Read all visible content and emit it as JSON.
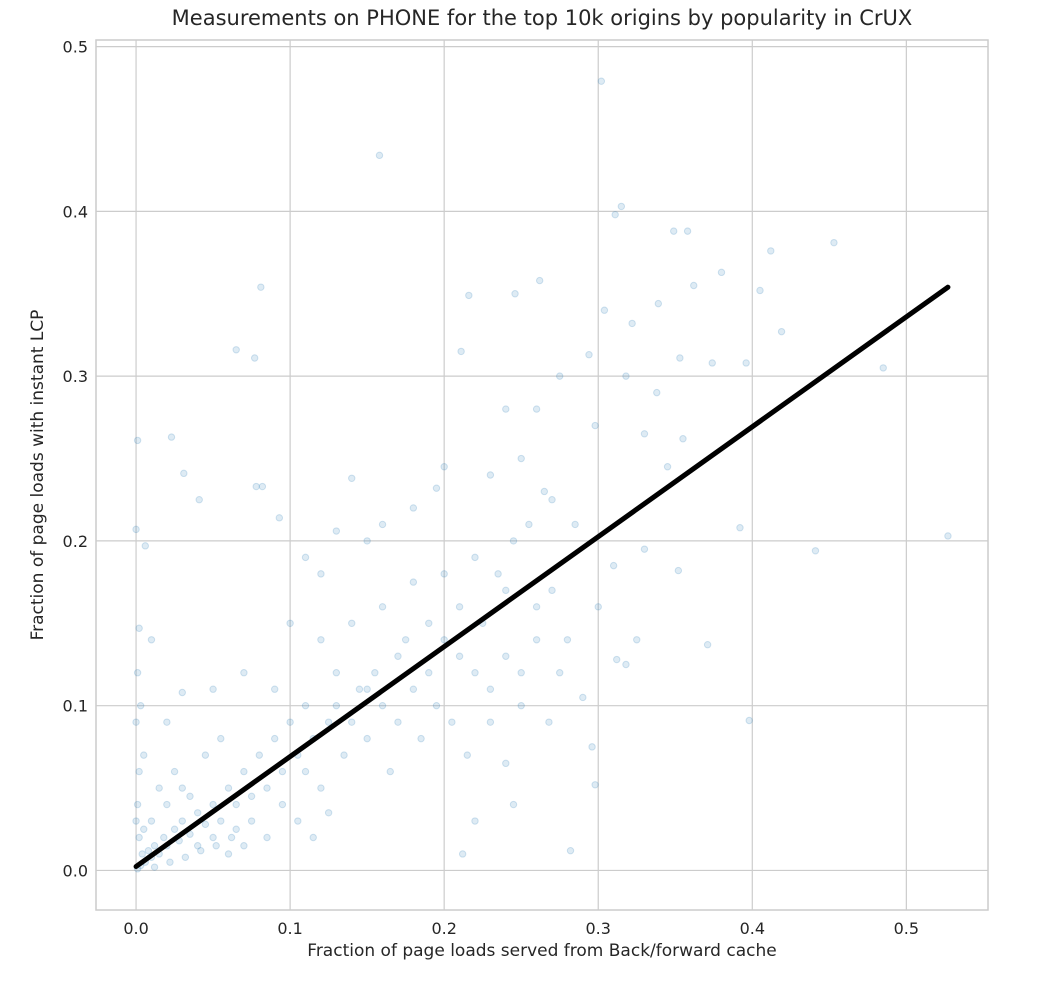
{
  "chart_data": {
    "type": "scatter",
    "title": "Measurements on PHONE for the top 10k origins by popularity in CrUX",
    "xlabel": "Fraction of page loads served from Back/forward cache",
    "ylabel": "Fraction of page loads with instant LCP",
    "xlim": [
      -0.026,
      0.553
    ],
    "ylim": [
      -0.024,
      0.504
    ],
    "xticks": [
      "0.0",
      "0.1",
      "0.2",
      "0.3",
      "0.4",
      "0.5"
    ],
    "yticks": [
      "0.0",
      "0.1",
      "0.2",
      "0.3",
      "0.4",
      "0.5"
    ],
    "grid": true,
    "point_color": "#1f77b4",
    "point_alpha": 0.15,
    "line_color": "#000000",
    "trend_line": [
      [
        0.0,
        0.0024
      ],
      [
        0.527,
        0.354
      ]
    ],
    "points": [
      [
        0.302,
        0.479
      ],
      [
        0.158,
        0.434
      ],
      [
        0.315,
        0.403
      ],
      [
        0.311,
        0.398
      ],
      [
        0.453,
        0.381
      ],
      [
        0.412,
        0.376
      ],
      [
        0.349,
        0.388
      ],
      [
        0.358,
        0.388
      ],
      [
        0.527,
        0.203
      ],
      [
        0.441,
        0.194
      ],
      [
        0.398,
        0.091
      ],
      [
        0.485,
        0.305
      ],
      [
        0.081,
        0.354
      ],
      [
        0.262,
        0.358
      ],
      [
        0.065,
        0.316
      ],
      [
        0.077,
        0.311
      ],
      [
        0.001,
        0.261
      ],
      [
        0.023,
        0.263
      ],
      [
        0.031,
        0.241
      ],
      [
        0.041,
        0.225
      ],
      [
        0.078,
        0.233
      ],
      [
        0.082,
        0.233
      ],
      [
        0.093,
        0.214
      ],
      [
        0.0,
        0.207
      ],
      [
        0.006,
        0.197
      ],
      [
        0.211,
        0.315
      ],
      [
        0.216,
        0.349
      ],
      [
        0.246,
        0.35
      ],
      [
        0.405,
        0.352
      ],
      [
        0.419,
        0.327
      ],
      [
        0.371,
        0.137
      ],
      [
        0.392,
        0.208
      ],
      [
        0.296,
        0.075
      ],
      [
        0.298,
        0.052
      ],
      [
        0.282,
        0.012
      ],
      [
        0.38,
        0.363
      ],
      [
        0.362,
        0.355
      ],
      [
        0.339,
        0.344
      ],
      [
        0.304,
        0.34
      ],
      [
        0.322,
        0.332
      ],
      [
        0.294,
        0.313
      ],
      [
        0.374,
        0.308
      ],
      [
        0.353,
        0.311
      ],
      [
        0.396,
        0.308
      ],
      [
        0.338,
        0.29
      ],
      [
        0.318,
        0.3
      ],
      [
        0.298,
        0.27
      ],
      [
        0.26,
        0.28
      ],
      [
        0.24,
        0.28
      ],
      [
        0.275,
        0.3
      ],
      [
        0.33,
        0.265
      ],
      [
        0.355,
        0.262
      ],
      [
        0.345,
        0.245
      ],
      [
        0.25,
        0.25
      ],
      [
        0.23,
        0.24
      ],
      [
        0.2,
        0.245
      ],
      [
        0.195,
        0.232
      ],
      [
        0.27,
        0.225
      ],
      [
        0.285,
        0.21
      ],
      [
        0.31,
        0.185
      ],
      [
        0.33,
        0.195
      ],
      [
        0.352,
        0.182
      ],
      [
        0.3,
        0.16
      ],
      [
        0.325,
        0.14
      ],
      [
        0.312,
        0.128
      ],
      [
        0.318,
        0.125
      ],
      [
        0.29,
        0.105
      ],
      [
        0.268,
        0.09
      ],
      [
        0.24,
        0.065
      ],
      [
        0.245,
        0.04
      ],
      [
        0.22,
        0.03
      ],
      [
        0.212,
        0.01
      ],
      [
        0.18,
        0.22
      ],
      [
        0.16,
        0.21
      ],
      [
        0.15,
        0.2
      ],
      [
        0.14,
        0.238
      ],
      [
        0.13,
        0.206
      ],
      [
        0.12,
        0.18
      ],
      [
        0.11,
        0.19
      ],
      [
        0.1,
        0.15
      ],
      [
        0.12,
        0.14
      ],
      [
        0.14,
        0.15
      ],
      [
        0.16,
        0.16
      ],
      [
        0.18,
        0.175
      ],
      [
        0.2,
        0.18
      ],
      [
        0.22,
        0.19
      ],
      [
        0.24,
        0.17
      ],
      [
        0.26,
        0.16
      ],
      [
        0.28,
        0.14
      ],
      [
        0.25,
        0.12
      ],
      [
        0.23,
        0.11
      ],
      [
        0.21,
        0.13
      ],
      [
        0.19,
        0.12
      ],
      [
        0.17,
        0.13
      ],
      [
        0.15,
        0.11
      ],
      [
        0.13,
        0.12
      ],
      [
        0.11,
        0.1
      ],
      [
        0.09,
        0.11
      ],
      [
        0.07,
        0.12
      ],
      [
        0.05,
        0.11
      ],
      [
        0.03,
        0.108
      ],
      [
        0.02,
        0.09
      ],
      [
        0.01,
        0.14
      ],
      [
        0.002,
        0.147
      ],
      [
        0.001,
        0.12
      ],
      [
        0.003,
        0.1
      ],
      [
        0.0,
        0.09
      ],
      [
        0.005,
        0.07
      ],
      [
        0.002,
        0.06
      ],
      [
        0.001,
        0.04
      ],
      [
        0.0,
        0.03
      ],
      [
        0.002,
        0.02
      ],
      [
        0.004,
        0.01
      ],
      [
        0.006,
        0.005
      ],
      [
        0.008,
        0.012
      ],
      [
        0.01,
        0.008
      ],
      [
        0.012,
        0.015
      ],
      [
        0.015,
        0.01
      ],
      [
        0.018,
        0.02
      ],
      [
        0.02,
        0.015
      ],
      [
        0.025,
        0.025
      ],
      [
        0.028,
        0.018
      ],
      [
        0.03,
        0.03
      ],
      [
        0.035,
        0.022
      ],
      [
        0.04,
        0.035
      ],
      [
        0.045,
        0.028
      ],
      [
        0.05,
        0.04
      ],
      [
        0.055,
        0.03
      ],
      [
        0.06,
        0.05
      ],
      [
        0.065,
        0.04
      ],
      [
        0.07,
        0.06
      ],
      [
        0.075,
        0.045
      ],
      [
        0.08,
        0.07
      ],
      [
        0.085,
        0.05
      ],
      [
        0.09,
        0.08
      ],
      [
        0.095,
        0.06
      ],
      [
        0.1,
        0.09
      ],
      [
        0.105,
        0.07
      ],
      [
        0.11,
        0.06
      ],
      [
        0.115,
        0.08
      ],
      [
        0.12,
        0.05
      ],
      [
        0.125,
        0.09
      ],
      [
        0.13,
        0.1
      ],
      [
        0.135,
        0.07
      ],
      [
        0.14,
        0.09
      ],
      [
        0.145,
        0.11
      ],
      [
        0.15,
        0.08
      ],
      [
        0.155,
        0.12
      ],
      [
        0.16,
        0.1
      ],
      [
        0.165,
        0.06
      ],
      [
        0.17,
        0.09
      ],
      [
        0.175,
        0.14
      ],
      [
        0.18,
        0.11
      ],
      [
        0.185,
        0.08
      ],
      [
        0.19,
        0.15
      ],
      [
        0.195,
        0.1
      ],
      [
        0.2,
        0.14
      ],
      [
        0.205,
        0.09
      ],
      [
        0.21,
        0.16
      ],
      [
        0.215,
        0.07
      ],
      [
        0.22,
        0.12
      ],
      [
        0.225,
        0.15
      ],
      [
        0.23,
        0.09
      ],
      [
        0.235,
        0.18
      ],
      [
        0.24,
        0.13
      ],
      [
        0.245,
        0.2
      ],
      [
        0.25,
        0.1
      ],
      [
        0.255,
        0.21
      ],
      [
        0.26,
        0.14
      ],
      [
        0.265,
        0.23
      ],
      [
        0.27,
        0.17
      ],
      [
        0.275,
        0.12
      ],
      [
        0.015,
        0.05
      ],
      [
        0.025,
        0.06
      ],
      [
        0.035,
        0.045
      ],
      [
        0.045,
        0.07
      ],
      [
        0.055,
        0.08
      ],
      [
        0.065,
        0.025
      ],
      [
        0.075,
        0.03
      ],
      [
        0.085,
        0.02
      ],
      [
        0.095,
        0.04
      ],
      [
        0.105,
        0.03
      ],
      [
        0.115,
        0.02
      ],
      [
        0.125,
        0.035
      ],
      [
        0.01,
        0.03
      ],
      [
        0.02,
        0.04
      ],
      [
        0.03,
        0.05
      ],
      [
        0.04,
        0.015
      ],
      [
        0.05,
        0.02
      ],
      [
        0.06,
        0.01
      ],
      [
        0.07,
        0.015
      ],
      [
        0.005,
        0.025
      ],
      [
        0.012,
        0.002
      ],
      [
        0.022,
        0.005
      ],
      [
        0.032,
        0.008
      ],
      [
        0.042,
        0.012
      ],
      [
        0.052,
        0.015
      ],
      [
        0.062,
        0.02
      ],
      [
        0.003,
        0.003
      ],
      [
        0.001,
        0.001
      ]
    ]
  }
}
